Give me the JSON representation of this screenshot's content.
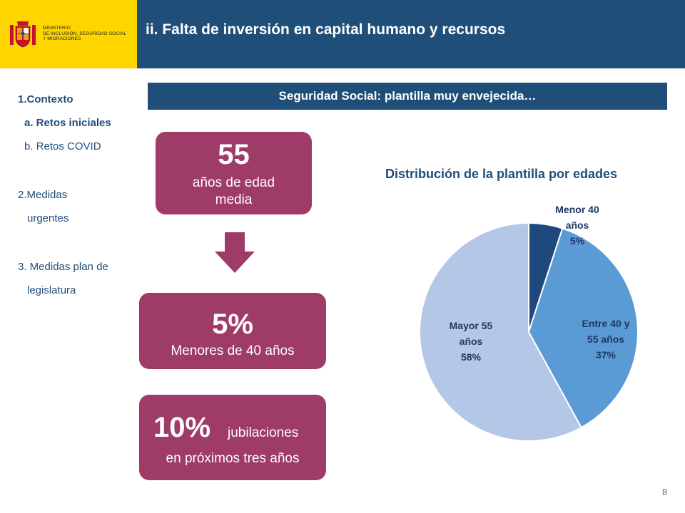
{
  "header": {
    "ministry_lines": [
      "MINISTERIO",
      "DE INCLUSIÓN, SEGURIDAD SOCIAL",
      "Y MIGRACIONES"
    ],
    "title": "ii. Falta de inversión en capital humano y recursos",
    "colors": {
      "brand_yellow": "#FFD500",
      "brand_blue": "#1F4E79"
    }
  },
  "nav": {
    "items": [
      {
        "label": "1.Contexto"
      },
      {
        "label": "a. Retos iniciales"
      },
      {
        "label": "b. Retos COVID"
      },
      {
        "label": "2.Medidas"
      },
      {
        "label": "urgentes"
      },
      {
        "label": "3. Medidas plan de"
      },
      {
        "label": "legislatura"
      }
    ]
  },
  "banner": {
    "text": "Seguridad Social: plantilla muy envejecida…"
  },
  "stats": {
    "age": {
      "value": "55",
      "line1": "años de edad",
      "line2": "media"
    },
    "under40": {
      "value": "5%",
      "label": "Menores de 40 años"
    },
    "retire": {
      "value": "10%",
      "label_a": "jubilaciones",
      "label_b": "en próximos tres años"
    },
    "box_color": "#9E3B67",
    "arrow_icon": "down-arrow-icon"
  },
  "chart_data": {
    "type": "pie",
    "title": "Distribución de la plantilla por edades",
    "slices": [
      {
        "label_lines": [
          "Menor 40",
          "años"
        ],
        "pct_label": "5%",
        "value": 5,
        "color": "#1F497D"
      },
      {
        "label_lines": [
          "Entre 40 y",
          "55 años"
        ],
        "pct_label": "37%",
        "value": 37,
        "color": "#5B9BD5"
      },
      {
        "label_lines": [
          "Mayor 55",
          "años"
        ],
        "pct_label": "58%",
        "value": 58,
        "color": "#B4C7E7"
      }
    ],
    "legend": "none"
  },
  "footer": {
    "page_number": "8"
  }
}
